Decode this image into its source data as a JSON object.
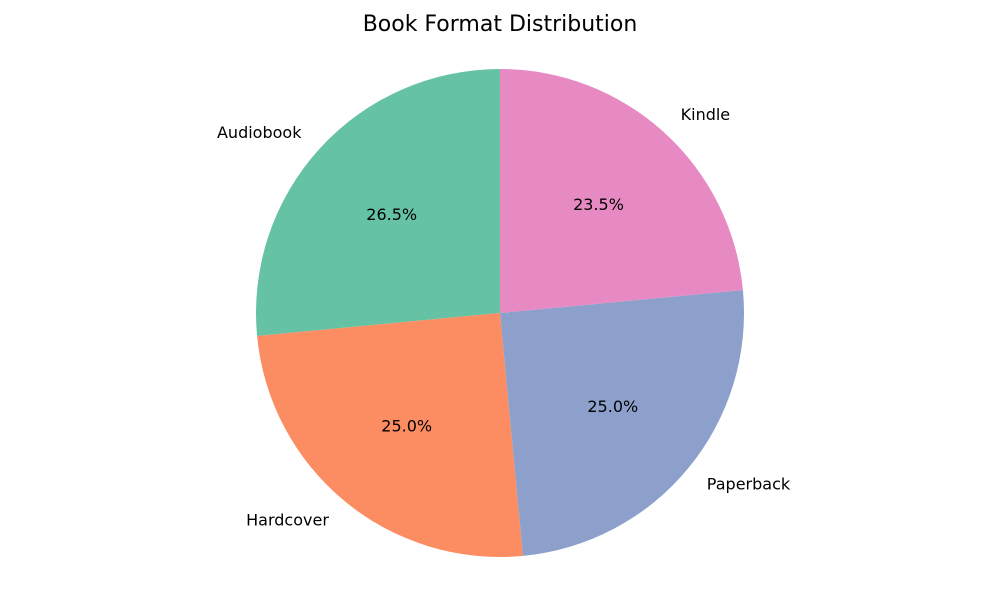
{
  "chart_data": {
    "type": "pie",
    "title": "Book Format Distribution",
    "start_angle_deg": 90,
    "direction": "counterclockwise",
    "slices": [
      {
        "label": "Audiobook",
        "value": 26.5,
        "pct_label": "26.5%",
        "color": "#66c2a5"
      },
      {
        "label": "Hardcover",
        "value": 25.0,
        "pct_label": "25.0%",
        "color": "#fc8d62"
      },
      {
        "label": "Paperback",
        "value": 25.0,
        "pct_label": "25.0%",
        "color": "#8da0cb"
      },
      {
        "label": "Kindle",
        "value": 23.5,
        "pct_label": "23.5%",
        "color": "#e78ac3"
      }
    ]
  }
}
